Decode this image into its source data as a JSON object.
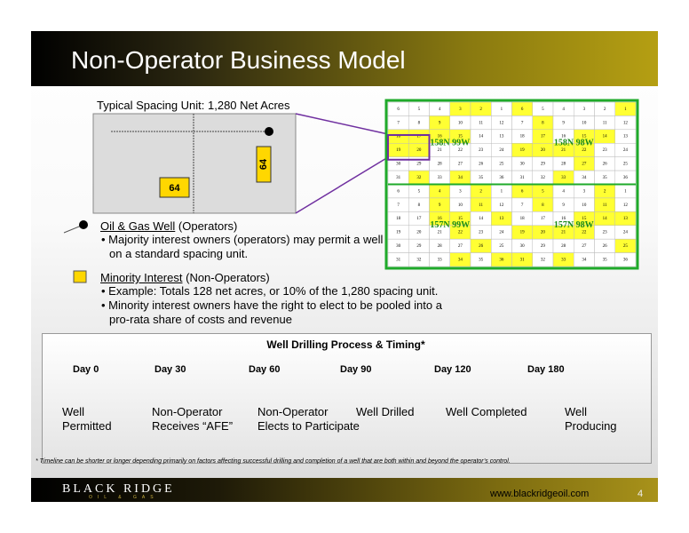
{
  "header": {
    "title": "Non-Operator Business Model"
  },
  "spacing_unit": {
    "caption": "Typical Spacing Unit: 1,280 Net Acres",
    "unit_labels": [
      64,
      64
    ]
  },
  "legend": [
    {
      "term": "Oil & Gas Well",
      "qualifier": "(Operators)",
      "bullets": [
        "Majority interest owners (operators) may permit a well on a standard spacing unit."
      ]
    },
    {
      "term": "Minority Interest",
      "qualifier": "(Non-Operators)",
      "bullets": [
        "Example: Totals 128 net acres, or 10% of the 1,280 spacing unit.",
        "Minority interest owners have the right to elect to be pooled into a pro-rata share of costs and revenue"
      ]
    }
  ],
  "map": {
    "highlight_color": "#ffff33",
    "border_color": "#1faa2a",
    "label_color": "#1a8a1a",
    "section_rows": [
      [
        6,
        5,
        4,
        3,
        2,
        1
      ],
      [
        7,
        8,
        9,
        10,
        11,
        12
      ],
      [
        18,
        17,
        16,
        15,
        14,
        13
      ],
      [
        19,
        20,
        21,
        22,
        23,
        24
      ],
      [
        30,
        29,
        28,
        27,
        26,
        25
      ],
      [
        31,
        32,
        33,
        34,
        35,
        36
      ]
    ],
    "townships": [
      {
        "label": "158N 99W",
        "highlighted": [
          3,
          2,
          9,
          18,
          17,
          16,
          15,
          19,
          20,
          34,
          32
        ]
      },
      {
        "label": "158N 98W",
        "highlighted": [
          6,
          8,
          1,
          17,
          15,
          14,
          19,
          20,
          21,
          22,
          27,
          33
        ]
      },
      {
        "label": "157N 99W",
        "highlighted": [
          4,
          2,
          9,
          11,
          15,
          13,
          16,
          22,
          26,
          34,
          36
        ]
      },
      {
        "label": "157N 98W",
        "highlighted": [
          6,
          5,
          2,
          8,
          11,
          15,
          14,
          13,
          19,
          20,
          21,
          22,
          25,
          31,
          33
        ]
      }
    ]
  },
  "timeline": {
    "title": "Well Drilling Process & Timing*",
    "steps": [
      {
        "day": "Day 0",
        "label": "Well Permitted"
      },
      {
        "day": "Day 30",
        "label": "Non-Operator Receives “AFE”"
      },
      {
        "day": "Day 60",
        "label": "Non-Operator Elects to Participate"
      },
      {
        "day": "Day 90",
        "label": "Well Drilled"
      },
      {
        "day": "Day 120",
        "label": "Well Completed"
      },
      {
        "day": "Day 180",
        "label": "Well Producing"
      }
    ]
  },
  "footnote": "* Timeline can be shorter or longer depending primarily on factors affecting successful drilling and completion of a well that are both within and beyond the operator’s control.",
  "footer": {
    "brand": "BLACK RIDGE",
    "brand_sub": "OIL & GAS",
    "url": "www.blackridgeoil.com",
    "page": 4
  }
}
